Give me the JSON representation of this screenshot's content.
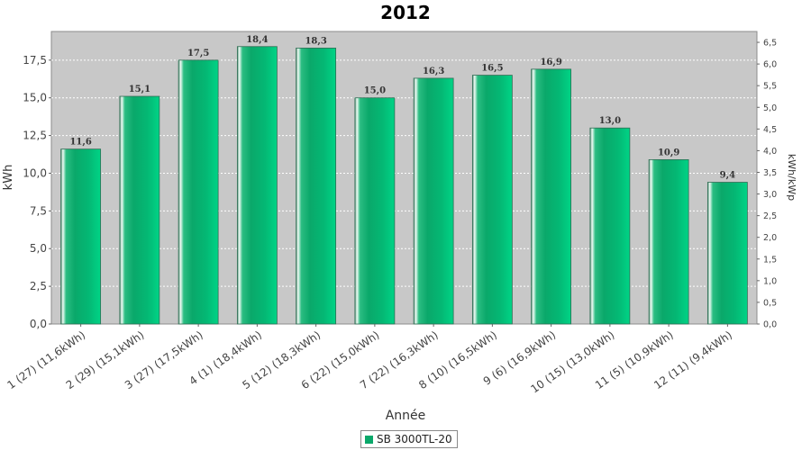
{
  "chart_data": {
    "type": "bar",
    "title": "2012",
    "xlabel": "Année",
    "ylabel": "kWh",
    "y2label": "kWh/kWp",
    "categories": [
      "1 (27)  (11,6kWh)",
      "2 (29)  (15,1kWh)",
      "3 (27)  (17,5kWh)",
      "4 (1)  (18,4kWh)",
      "5 (12)  (18,3kWh)",
      "6 (22)  (15,0kWh)",
      "7 (22)  (16,3kWh)",
      "8 (10)  (16,5kWh)",
      "9 (6)  (16,9kWh)",
      "10 (15)  (13,0kWh)",
      "11 (5)  (10,9kWh)",
      "12 (11)  (9,4kWh)"
    ],
    "series": [
      {
        "name": "SB 3000TL-20",
        "values": [
          11.6,
          15.1,
          17.5,
          18.4,
          18.3,
          15.0,
          16.3,
          16.5,
          16.9,
          13.0,
          10.9,
          9.4
        ],
        "labels": [
          "11,6",
          "15,1",
          "17,5",
          "18,4",
          "18,3",
          "15,0",
          "16,3",
          "16,5",
          "16,9",
          "13,0",
          "10,9",
          "9,4"
        ],
        "color": "#0aa86a"
      }
    ],
    "ylim": [
      0,
      19.4
    ],
    "yticks": [
      "0,0",
      "2,5",
      "5,0",
      "7,5",
      "10,0",
      "12,5",
      "15,0",
      "17,5"
    ],
    "ytick_values": [
      0,
      2.5,
      5,
      7.5,
      10,
      12.5,
      15,
      17.5
    ],
    "y2lim": [
      0,
      6.75
    ],
    "y2ticks": [
      "0,0",
      "0,5",
      "1,0",
      "1,5",
      "2,0",
      "2,5",
      "3,0",
      "3,5",
      "4,0",
      "4,5",
      "5,0",
      "5,5",
      "6,0",
      "6,5"
    ],
    "y2tick_values": [
      0,
      0.5,
      1,
      1.5,
      2,
      2.5,
      3,
      3.5,
      4,
      4.5,
      5,
      5.5,
      6,
      6.5
    ],
    "grid": true,
    "legend": "bottom-center",
    "plot_background": "#c8c8c8"
  },
  "legend": {
    "label": "SB 3000TL-20"
  }
}
